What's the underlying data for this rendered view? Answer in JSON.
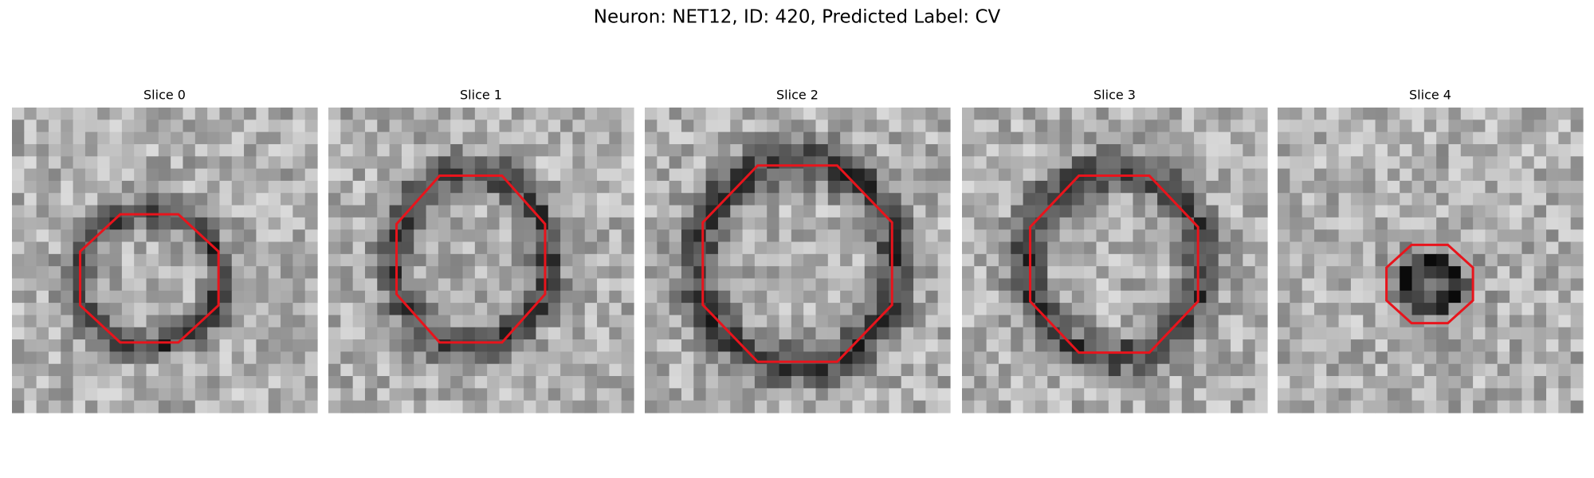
{
  "title": "Neuron: NET12, ID: 420, Predicted Label: CV",
  "panels": [
    {
      "title": "Slice 0"
    },
    {
      "title": "Slice 1"
    },
    {
      "title": "Slice 2"
    },
    {
      "title": "Slice 3"
    },
    {
      "title": "Slice 4"
    }
  ]
}
